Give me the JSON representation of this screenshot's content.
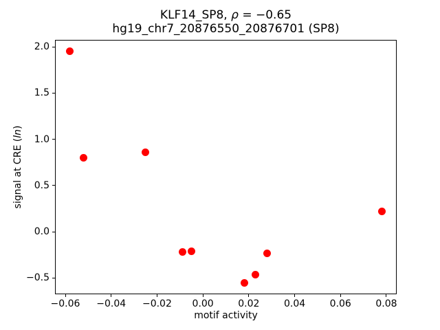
{
  "title": {
    "line1_prefix": "KLF14_SP8, ",
    "line1_rho": "ρ",
    "line1_suffix": " = −0.65",
    "line2": "hg19_chr7_20876550_20876701 (SP8)"
  },
  "axes": {
    "xlabel": "motif activity",
    "ylabel_prefix": "signal at CRE (",
    "ylabel_italic": "ln",
    "ylabel_suffix": ")",
    "x_ticks": [
      {
        "value": -0.06,
        "label": "−0.06"
      },
      {
        "value": -0.04,
        "label": "−0.04"
      },
      {
        "value": -0.02,
        "label": "−0.02"
      },
      {
        "value": 0.0,
        "label": "0.00"
      },
      {
        "value": 0.02,
        "label": "0.02"
      },
      {
        "value": 0.04,
        "label": "0.04"
      },
      {
        "value": 0.06,
        "label": "0.06"
      },
      {
        "value": 0.08,
        "label": "0.08"
      }
    ],
    "y_ticks": [
      {
        "value": 2.0,
        "label": "2.0"
      },
      {
        "value": 1.5,
        "label": "1.5"
      },
      {
        "value": 1.0,
        "label": "1.0"
      },
      {
        "value": 0.5,
        "label": "0.5"
      },
      {
        "value": 0.0,
        "label": "0.0"
      },
      {
        "value": -0.5,
        "label": "−0.5"
      }
    ]
  },
  "chart_data": {
    "type": "scatter",
    "title": "KLF14_SP8, ρ = −0.65\nhg19_chr7_20876550_20876701 (SP8)",
    "xlabel": "motif activity",
    "ylabel": "signal at CRE (ln)",
    "marker_color": "#ff0000",
    "marker_shape": "circle",
    "grid": false,
    "legend": false,
    "xlim": [
      -0.0645,
      0.0845
    ],
    "ylim": [
      -0.675,
      2.075
    ],
    "points": [
      {
        "x": -0.058,
        "y": 1.95
      },
      {
        "x": -0.052,
        "y": 0.8
      },
      {
        "x": -0.025,
        "y": 0.86
      },
      {
        "x": -0.009,
        "y": -0.22
      },
      {
        "x": -0.005,
        "y": -0.21
      },
      {
        "x": 0.018,
        "y": -0.55
      },
      {
        "x": 0.023,
        "y": -0.46
      },
      {
        "x": 0.028,
        "y": -0.23
      },
      {
        "x": 0.078,
        "y": 0.22
      }
    ]
  }
}
